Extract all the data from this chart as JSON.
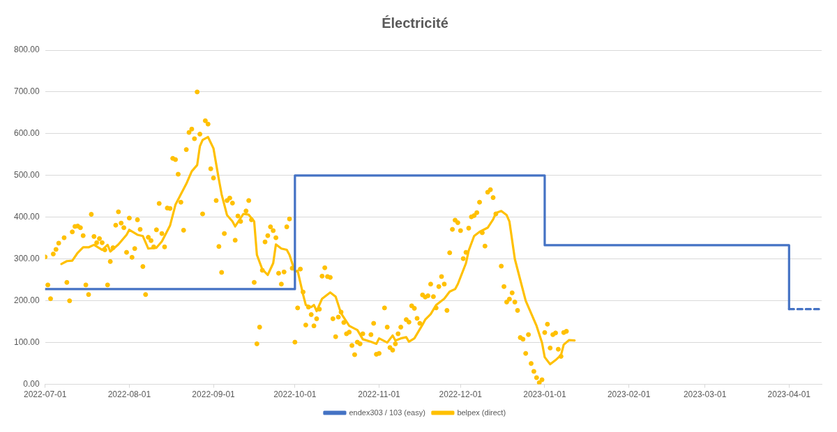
{
  "chart_data": {
    "type": "line",
    "title": "Électricité",
    "xlim": [
      "2022-07-01",
      "2023-04-13"
    ],
    "xticks": [
      "2022-07-01",
      "2022-08-01",
      "2022-09-01",
      "2022-10-01",
      "2022-11-01",
      "2022-12-01",
      "2023-01-01",
      "2023-02-01",
      "2023-03-01",
      "2023-04-01"
    ],
    "ylim": [
      0,
      800
    ],
    "yticks": [
      {
        "value": 0,
        "label": "0.00"
      },
      {
        "value": 100,
        "label": "100.00"
      },
      {
        "value": 200,
        "label": "200.00"
      },
      {
        "value": 300,
        "label": "300.00"
      },
      {
        "value": 400,
        "label": "400.00"
      },
      {
        "value": 500,
        "label": "500.00"
      },
      {
        "value": 600,
        "label": "600.00"
      },
      {
        "value": 700,
        "label": "700.00"
      },
      {
        "value": 800,
        "label": "800.00"
      }
    ],
    "grid": "y",
    "legend": "bottom",
    "series": [
      {
        "name": "endex303 / 103 (easy)",
        "type": "step",
        "color": "#4472c4",
        "x": [
          "2022-07-01",
          "2022-10-01",
          "2023-01-01",
          "2023-04-01"
        ],
        "values": [
          228,
          500,
          333,
          180
        ]
      },
      {
        "type": "line",
        "color": "#4472c4",
        "line_style": "dashed",
        "x": [
          "2023-04-01",
          "2023-04-12"
        ],
        "values": [
          180,
          180
        ]
      },
      {
        "name": "belpex (direct)",
        "type": "line",
        "color": "#ffc000",
        "x": [
          "2022-07-07",
          "2022-07-09",
          "2022-07-11",
          "2022-07-13",
          "2022-07-15",
          "2022-07-17",
          "2022-07-19",
          "2022-07-22",
          "2022-07-24",
          "2022-07-25",
          "2022-07-28",
          "2022-07-31",
          "2022-08-01",
          "2022-08-04",
          "2022-08-06",
          "2022-08-08",
          "2022-08-11",
          "2022-08-13",
          "2022-08-16",
          "2022-08-18",
          "2022-08-20",
          "2022-08-22",
          "2022-08-24",
          "2022-08-26",
          "2022-08-27",
          "2022-08-28",
          "2022-08-30",
          "2022-09-01",
          "2022-09-03",
          "2022-09-04",
          "2022-09-06",
          "2022-09-08",
          "2022-09-09",
          "2022-09-11",
          "2022-09-12",
          "2022-09-14",
          "2022-09-16",
          "2022-09-17",
          "2022-09-19",
          "2022-09-21",
          "2022-09-23",
          "2022-09-24",
          "2022-09-26",
          "2022-09-28",
          "2022-09-29",
          "2022-10-01",
          "2022-10-02",
          "2022-10-04",
          "2022-10-05",
          "2022-10-07",
          "2022-10-08",
          "2022-10-09",
          "2022-10-11",
          "2022-10-14",
          "2022-10-16",
          "2022-10-18",
          "2022-10-21",
          "2022-10-24",
          "2022-10-26",
          "2022-10-29",
          "2022-10-31",
          "2022-11-01",
          "2022-11-04",
          "2022-11-06",
          "2022-11-07",
          "2022-11-09",
          "2022-11-11",
          "2022-11-12",
          "2022-11-14",
          "2022-11-17",
          "2022-11-18",
          "2022-11-20",
          "2022-11-22",
          "2022-11-25",
          "2022-11-27",
          "2022-11-29",
          "2022-11-30",
          "2022-12-03",
          "2022-12-04",
          "2022-12-06",
          "2022-12-08",
          "2022-12-11",
          "2022-12-13",
          "2022-12-14",
          "2022-12-16",
          "2022-12-18",
          "2022-12-19",
          "2022-12-21",
          "2022-12-23",
          "2022-12-25",
          "2022-12-27",
          "2022-12-29",
          "2022-12-31",
          "2023-01-01",
          "2023-01-03",
          "2023-01-05",
          "2023-01-07",
          "2023-01-08",
          "2023-01-10",
          "2023-01-12"
        ],
        "values": [
          288,
          295,
          296,
          315,
          328,
          328,
          334,
          322,
          334,
          318,
          335,
          358,
          370,
          358,
          355,
          325,
          327,
          342,
          380,
          430,
          455,
          480,
          510,
          525,
          570,
          585,
          592,
          565,
          490,
          455,
          405,
          390,
          378,
          398,
          408,
          406,
          390,
          310,
          275,
          262,
          290,
          335,
          325,
          322,
          310,
          270,
          272,
          215,
          190,
          185,
          190,
          175,
          205,
          220,
          210,
          170,
          140,
          130,
          108,
          102,
          97,
          110,
          100,
          117,
          105,
          110,
          113,
          102,
          110,
          143,
          155,
          168,
          190,
          205,
          222,
          228,
          240,
          290,
          320,
          355,
          365,
          375,
          395,
          410,
          415,
          405,
          390,
          300,
          250,
          200,
          170,
          140,
          100,
          65,
          48,
          58,
          70,
          95,
          106,
          105
        ]
      },
      {
        "type": "scatter",
        "color": "#ffc000",
        "marker": "circle",
        "x": [
          "2022-07-01",
          "2022-07-02",
          "2022-07-03",
          "2022-07-04",
          "2022-07-05",
          "2022-07-06",
          "2022-07-08",
          "2022-07-09",
          "2022-07-10",
          "2022-07-11",
          "2022-07-12",
          "2022-07-13",
          "2022-07-14",
          "2022-07-15",
          "2022-07-16",
          "2022-07-17",
          "2022-07-18",
          "2022-07-19",
          "2022-07-20",
          "2022-07-21",
          "2022-07-22",
          "2022-07-23",
          "2022-07-24",
          "2022-07-25",
          "2022-07-26",
          "2022-07-27",
          "2022-07-28",
          "2022-07-29",
          "2022-07-30",
          "2022-07-31",
          "2022-08-01",
          "2022-08-02",
          "2022-08-03",
          "2022-08-04",
          "2022-08-05",
          "2022-08-06",
          "2022-08-07",
          "2022-08-08",
          "2022-08-09",
          "2022-08-10",
          "2022-08-11",
          "2022-08-12",
          "2022-08-13",
          "2022-08-14",
          "2022-08-15",
          "2022-08-16",
          "2022-08-17",
          "2022-08-18",
          "2022-08-19",
          "2022-08-20",
          "2022-08-21",
          "2022-08-22",
          "2022-08-23",
          "2022-08-24",
          "2022-08-25",
          "2022-08-26",
          "2022-08-27",
          "2022-08-28",
          "2022-08-29",
          "2022-08-30",
          "2022-08-31",
          "2022-09-01",
          "2022-09-02",
          "2022-09-03",
          "2022-09-04",
          "2022-09-05",
          "2022-09-06",
          "2022-09-07",
          "2022-09-08",
          "2022-09-09",
          "2022-09-10",
          "2022-09-11",
          "2022-09-13",
          "2022-09-14",
          "2022-09-15",
          "2022-09-16",
          "2022-09-17",
          "2022-09-18",
          "2022-09-19",
          "2022-09-20",
          "2022-09-21",
          "2022-09-22",
          "2022-09-23",
          "2022-09-24",
          "2022-09-25",
          "2022-09-26",
          "2022-09-27",
          "2022-09-28",
          "2022-09-29",
          "2022-09-30",
          "2022-10-01",
          "2022-10-02",
          "2022-10-03",
          "2022-10-04",
          "2022-10-05",
          "2022-10-06",
          "2022-10-07",
          "2022-10-08",
          "2022-10-09",
          "2022-10-10",
          "2022-10-11",
          "2022-10-12",
          "2022-10-13",
          "2022-10-14",
          "2022-10-15",
          "2022-10-16",
          "2022-10-17",
          "2022-10-18",
          "2022-10-19",
          "2022-10-20",
          "2022-10-21",
          "2022-10-22",
          "2022-10-23",
          "2022-10-24",
          "2022-10-25",
          "2022-10-26",
          "2022-10-29",
          "2022-10-30",
          "2022-10-31",
          "2022-11-01",
          "2022-11-03",
          "2022-11-04",
          "2022-11-05",
          "2022-11-06",
          "2022-11-07",
          "2022-11-08",
          "2022-11-09",
          "2022-11-11",
          "2022-11-12",
          "2022-11-13",
          "2022-11-14",
          "2022-11-15",
          "2022-11-16",
          "2022-11-17",
          "2022-11-18",
          "2022-11-19",
          "2022-11-20",
          "2022-11-21",
          "2022-11-22",
          "2022-11-23",
          "2022-11-24",
          "2022-11-25",
          "2022-11-26",
          "2022-11-27",
          "2022-11-28",
          "2022-11-29",
          "2022-11-30",
          "2022-12-01",
          "2022-12-02",
          "2022-12-03",
          "2022-12-04",
          "2022-12-05",
          "2022-12-06",
          "2022-12-07",
          "2022-12-08",
          "2022-12-09",
          "2022-12-10",
          "2022-12-11",
          "2022-12-12",
          "2022-12-13",
          "2022-12-14",
          "2022-12-16",
          "2022-12-17",
          "2022-12-18",
          "2022-12-19",
          "2022-12-20",
          "2022-12-21",
          "2022-12-22",
          "2022-12-23",
          "2022-12-24",
          "2022-12-25",
          "2022-12-26",
          "2022-12-27",
          "2022-12-28",
          "2022-12-29",
          "2022-12-30",
          "2022-12-31",
          "2023-01-01",
          "2023-01-02",
          "2023-01-03",
          "2023-01-04",
          "2023-01-05",
          "2023-01-06",
          "2023-01-07",
          "2023-01-08",
          "2023-01-09"
        ],
        "values": [
          305,
          238,
          205,
          312,
          323,
          338,
          351,
          244,
          200,
          365,
          378,
          379,
          375,
          356,
          238,
          215,
          407,
          354,
          339,
          349,
          339,
          322,
          238,
          294,
          327,
          381,
          413,
          386,
          375,
          316,
          398,
          304,
          325,
          394,
          371,
          282,
          215,
          352,
          344,
          329,
          370,
          433,
          361,
          329,
          422,
          421,
          541,
          538,
          503,
          436,
          369,
          562,
          603,
          611,
          588,
          700,
          599,
          408,
          631,
          623,
          516,
          494,
          440,
          330,
          268,
          361,
          440,
          446,
          434,
          345,
          403,
          390,
          415,
          440,
          394,
          244,
          97,
          137,
          273,
          341,
          356,
          377,
          368,
          351,
          266,
          240,
          269,
          377,
          396,
          278,
          101,
          183,
          276,
          221,
          142,
          185,
          167,
          140,
          157,
          180,
          259,
          279,
          258,
          256,
          157,
          114,
          161,
          173,
          148,
          121,
          125,
          93,
          71,
          101,
          97,
          121,
          119,
          146,
          72,
          74,
          183,
          137,
          88,
          82,
          97,
          121,
          137,
          155,
          149,
          188,
          182,
          158,
          146,
          214,
          209,
          212,
          240,
          210,
          183,
          234,
          258,
          240,
          177,
          315,
          371,
          393,
          387,
          368,
          301,
          316,
          374,
          401,
          404,
          411,
          436,
          363,
          331,
          460,
          466,
          447,
          408,
          283,
          234,
          197,
          204,
          219,
          197,
          177,
          112,
          108,
          74,
          119,
          50,
          31,
          16,
          4,
          11,
          124,
          144,
          87,
          119,
          123,
          84,
          67,
          124,
          127
        ]
      }
    ]
  }
}
